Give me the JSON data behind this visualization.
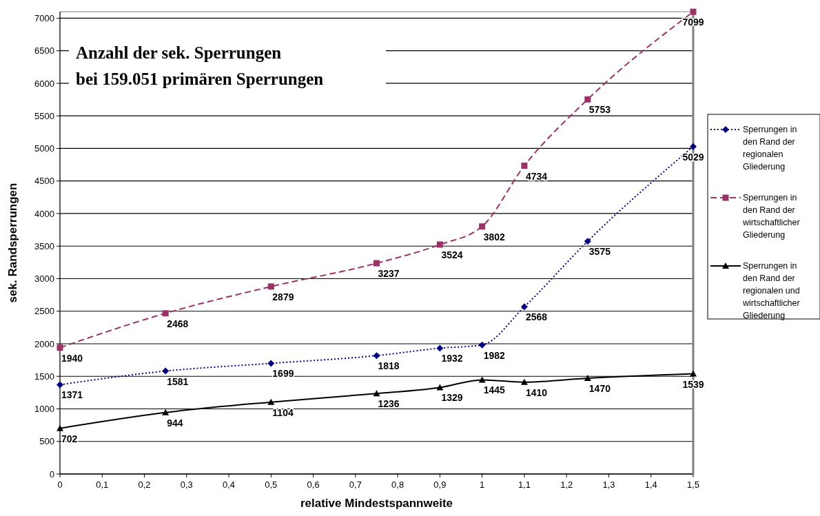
{
  "chart_data": {
    "type": "line",
    "title": "Anzahl der sek. Sperrungen",
    "subtitle": "bei 159.051 primären Sperrungen",
    "xlabel": "relative Mindestspannweite",
    "ylabel": "sek. Randsperrungen",
    "x": [
      0,
      0.25,
      0.5,
      0.75,
      0.9,
      1,
      1.1,
      1.25,
      1.5
    ],
    "xlim": [
      0,
      1.5
    ],
    "xticks": [
      0,
      {
        "value": 0.1,
        "label": "0,1"
      },
      {
        "value": 0.2,
        "label": "0,2"
      },
      {
        "value": 0.3,
        "label": "0,3"
      },
      {
        "value": 0.4,
        "label": "0,4"
      },
      {
        "value": 0.5,
        "label": "0,5"
      },
      {
        "value": 0.6,
        "label": "0,6"
      },
      {
        "value": 0.7,
        "label": "0,7"
      },
      {
        "value": 0.8,
        "label": "0,8"
      },
      {
        "value": 0.9,
        "label": "0,9"
      },
      1,
      {
        "value": 1.1,
        "label": "1,1"
      },
      {
        "value": 1.2,
        "label": "1,2"
      },
      {
        "value": 1.3,
        "label": "1,3"
      },
      {
        "value": 1.4,
        "label": "1,4"
      },
      {
        "value": 1.5,
        "label": "1,5"
      }
    ],
    "ylim": [
      0,
      7100
    ],
    "yticks": [
      0,
      500,
      1000,
      1500,
      2000,
      2500,
      3000,
      3500,
      4000,
      4500,
      5000,
      5500,
      6000,
      6500,
      7000
    ],
    "grid": "y",
    "legend": "right",
    "data_labels": true,
    "series": [
      {
        "name": "Sperrungen in den Rand der regionalen Gliederung",
        "color": "#000080",
        "marker": "diamond",
        "line_style": "dotted",
        "values": [
          1371,
          1581,
          1699,
          1818,
          1932,
          1982,
          2568,
          3575,
          5029
        ]
      },
      {
        "name": "Sperrungen in den Rand der wirtschaftlicher Gliederung",
        "color": "#993366",
        "marker": "square",
        "line_style": "dashed",
        "values": [
          1940,
          2468,
          2879,
          3237,
          3524,
          3802,
          4734,
          5753,
          7099
        ]
      },
      {
        "name": "Sperrungen in den Rand der regionalen und wirtschaftlicher Gliederung",
        "color": "#000000",
        "marker": "triangle",
        "line_style": "solid",
        "values": [
          702,
          944,
          1104,
          1236,
          1329,
          1445,
          1410,
          1470,
          1539
        ]
      }
    ]
  }
}
